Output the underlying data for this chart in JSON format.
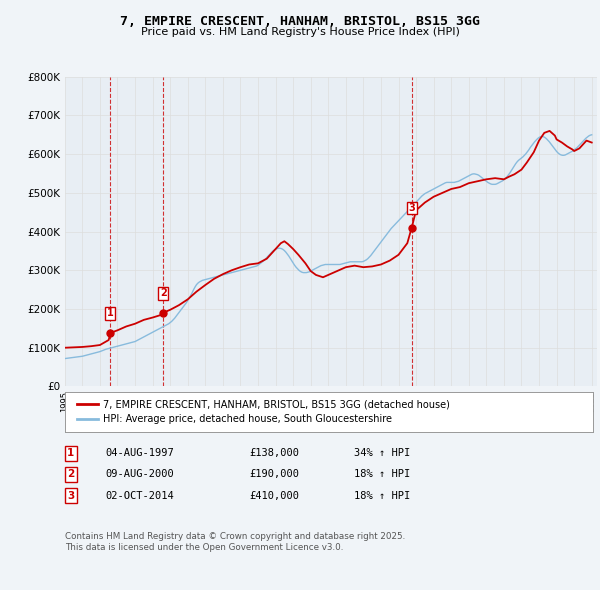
{
  "title": "7, EMPIRE CRESCENT, HANHAM, BRISTOL, BS15 3GG",
  "subtitle": "Price paid vs. HM Land Registry's House Price Index (HPI)",
  "ylim": [
    0,
    800000
  ],
  "yticks": [
    0,
    100000,
    200000,
    300000,
    400000,
    500000,
    600000,
    700000,
    800000
  ],
  "ytick_labels": [
    "£0",
    "£100K",
    "£200K",
    "£300K",
    "£400K",
    "£500K",
    "£600K",
    "£700K",
    "£800K"
  ],
  "sale_dates": [
    1997.59,
    2000.6,
    2014.75
  ],
  "sale_prices": [
    138000,
    190000,
    410000
  ],
  "sale_labels": [
    "1",
    "2",
    "3"
  ],
  "red_line_color": "#cc0000",
  "blue_line_color": "#88bbdd",
  "vline_color": "#cc0000",
  "grid_color": "#dddddd",
  "background_color": "#f0f4f8",
  "plot_bg_color": "#e8eef4",
  "legend_label_red": "7, EMPIRE CRESCENT, HANHAM, BRISTOL, BS15 3GG (detached house)",
  "legend_label_blue": "HPI: Average price, detached house, South Gloucestershire",
  "table_entries": [
    {
      "num": "1",
      "date": "04-AUG-1997",
      "price": "£138,000",
      "hpi": "34% ↑ HPI"
    },
    {
      "num": "2",
      "date": "09-AUG-2000",
      "price": "£190,000",
      "hpi": "18% ↑ HPI"
    },
    {
      "num": "3",
      "date": "02-OCT-2014",
      "price": "£410,000",
      "hpi": "18% ↑ HPI"
    }
  ],
  "footer": "Contains HM Land Registry data © Crown copyright and database right 2025.\nThis data is licensed under the Open Government Licence v3.0.",
  "hpi_years": [
    1995.0,
    1995.083,
    1995.167,
    1995.25,
    1995.333,
    1995.417,
    1995.5,
    1995.583,
    1995.667,
    1995.75,
    1995.833,
    1995.917,
    1996.0,
    1996.083,
    1996.167,
    1996.25,
    1996.333,
    1996.417,
    1996.5,
    1996.583,
    1996.667,
    1996.75,
    1996.833,
    1996.917,
    1997.0,
    1997.083,
    1997.167,
    1997.25,
    1997.333,
    1997.417,
    1997.5,
    1997.583,
    1997.667,
    1997.75,
    1997.833,
    1997.917,
    1998.0,
    1998.083,
    1998.167,
    1998.25,
    1998.333,
    1998.417,
    1998.5,
    1998.583,
    1998.667,
    1998.75,
    1998.833,
    1998.917,
    1999.0,
    1999.083,
    1999.167,
    1999.25,
    1999.333,
    1999.417,
    1999.5,
    1999.583,
    1999.667,
    1999.75,
    1999.833,
    1999.917,
    2000.0,
    2000.083,
    2000.167,
    2000.25,
    2000.333,
    2000.417,
    2000.5,
    2000.583,
    2000.667,
    2000.75,
    2000.833,
    2000.917,
    2001.0,
    2001.083,
    2001.167,
    2001.25,
    2001.333,
    2001.417,
    2001.5,
    2001.583,
    2001.667,
    2001.75,
    2001.833,
    2001.917,
    2002.0,
    2002.083,
    2002.167,
    2002.25,
    2002.333,
    2002.417,
    2002.5,
    2002.583,
    2002.667,
    2002.75,
    2002.833,
    2002.917,
    2003.0,
    2003.083,
    2003.167,
    2003.25,
    2003.333,
    2003.417,
    2003.5,
    2003.583,
    2003.667,
    2003.75,
    2003.833,
    2003.917,
    2004.0,
    2004.083,
    2004.167,
    2004.25,
    2004.333,
    2004.417,
    2004.5,
    2004.583,
    2004.667,
    2004.75,
    2004.833,
    2004.917,
    2005.0,
    2005.083,
    2005.167,
    2005.25,
    2005.333,
    2005.417,
    2005.5,
    2005.583,
    2005.667,
    2005.75,
    2005.833,
    2005.917,
    2006.0,
    2006.083,
    2006.167,
    2006.25,
    2006.333,
    2006.417,
    2006.5,
    2006.583,
    2006.667,
    2006.75,
    2006.833,
    2006.917,
    2007.0,
    2007.083,
    2007.167,
    2007.25,
    2007.333,
    2007.417,
    2007.5,
    2007.583,
    2007.667,
    2007.75,
    2007.833,
    2007.917,
    2008.0,
    2008.083,
    2008.167,
    2008.25,
    2008.333,
    2008.417,
    2008.5,
    2008.583,
    2008.667,
    2008.75,
    2008.833,
    2008.917,
    2009.0,
    2009.083,
    2009.167,
    2009.25,
    2009.333,
    2009.417,
    2009.5,
    2009.583,
    2009.667,
    2009.75,
    2009.833,
    2009.917,
    2010.0,
    2010.083,
    2010.167,
    2010.25,
    2010.333,
    2010.417,
    2010.5,
    2010.583,
    2010.667,
    2010.75,
    2010.833,
    2010.917,
    2011.0,
    2011.083,
    2011.167,
    2011.25,
    2011.333,
    2011.417,
    2011.5,
    2011.583,
    2011.667,
    2011.75,
    2011.833,
    2011.917,
    2012.0,
    2012.083,
    2012.167,
    2012.25,
    2012.333,
    2012.417,
    2012.5,
    2012.583,
    2012.667,
    2012.75,
    2012.833,
    2012.917,
    2013.0,
    2013.083,
    2013.167,
    2013.25,
    2013.333,
    2013.417,
    2013.5,
    2013.583,
    2013.667,
    2013.75,
    2013.833,
    2013.917,
    2014.0,
    2014.083,
    2014.167,
    2014.25,
    2014.333,
    2014.417,
    2014.5,
    2014.583,
    2014.667,
    2014.75,
    2014.833,
    2014.917,
    2015.0,
    2015.083,
    2015.167,
    2015.25,
    2015.333,
    2015.417,
    2015.5,
    2015.583,
    2015.667,
    2015.75,
    2015.833,
    2015.917,
    2016.0,
    2016.083,
    2016.167,
    2016.25,
    2016.333,
    2016.417,
    2016.5,
    2016.583,
    2016.667,
    2016.75,
    2016.833,
    2016.917,
    2017.0,
    2017.083,
    2017.167,
    2017.25,
    2017.333,
    2017.417,
    2017.5,
    2017.583,
    2017.667,
    2017.75,
    2017.833,
    2017.917,
    2018.0,
    2018.083,
    2018.167,
    2018.25,
    2018.333,
    2018.417,
    2018.5,
    2018.583,
    2018.667,
    2018.75,
    2018.833,
    2018.917,
    2019.0,
    2019.083,
    2019.167,
    2019.25,
    2019.333,
    2019.417,
    2019.5,
    2019.583,
    2019.667,
    2019.75,
    2019.833,
    2019.917,
    2020.0,
    2020.083,
    2020.167,
    2020.25,
    2020.333,
    2020.417,
    2020.5,
    2020.583,
    2020.667,
    2020.75,
    2020.833,
    2020.917,
    2021.0,
    2021.083,
    2021.167,
    2021.25,
    2021.333,
    2021.417,
    2021.5,
    2021.583,
    2021.667,
    2021.75,
    2021.833,
    2021.917,
    2022.0,
    2022.083,
    2022.167,
    2022.25,
    2022.333,
    2022.417,
    2022.5,
    2022.583,
    2022.667,
    2022.75,
    2022.833,
    2022.917,
    2023.0,
    2023.083,
    2023.167,
    2023.25,
    2023.333,
    2023.417,
    2023.5,
    2023.583,
    2023.667,
    2023.75,
    2023.833,
    2023.917,
    2024.0,
    2024.083,
    2024.167,
    2024.25,
    2024.333,
    2024.417,
    2024.5,
    2024.583,
    2024.667,
    2024.75,
    2024.833,
    2024.917,
    2025.0
  ],
  "hpi_values": [
    72000,
    72500,
    73000,
    73500,
    74000,
    74500,
    75000,
    75500,
    76000,
    76500,
    77000,
    77500,
    78000,
    79000,
    80000,
    81000,
    82000,
    83000,
    84000,
    85000,
    86000,
    87000,
    88000,
    89000,
    90000,
    91500,
    93000,
    94500,
    96000,
    97000,
    98000,
    99000,
    100000,
    101000,
    102000,
    103000,
    104000,
    105000,
    106000,
    107000,
    108000,
    109000,
    110000,
    111000,
    112000,
    113000,
    114000,
    115000,
    116000,
    118000,
    120000,
    122000,
    124000,
    126000,
    128000,
    130000,
    132000,
    134000,
    136000,
    138000,
    140000,
    142000,
    144000,
    146000,
    148000,
    150000,
    152000,
    154000,
    156000,
    158000,
    160000,
    162000,
    165000,
    168000,
    172000,
    176000,
    181000,
    186000,
    191000,
    196000,
    201000,
    206000,
    211000,
    216000,
    222000,
    228000,
    235000,
    242000,
    250000,
    257000,
    263000,
    267000,
    270000,
    272000,
    274000,
    275000,
    276000,
    277000,
    278000,
    279000,
    280000,
    281000,
    282000,
    283000,
    284000,
    285000,
    286000,
    287000,
    288000,
    289000,
    290000,
    291000,
    292000,
    293000,
    294000,
    295000,
    296000,
    297000,
    298000,
    299000,
    300000,
    301000,
    302000,
    303000,
    304000,
    305000,
    306000,
    307000,
    308000,
    309000,
    310000,
    311000,
    313000,
    316000,
    319000,
    322000,
    325000,
    329000,
    333000,
    337000,
    341000,
    345000,
    349000,
    352000,
    354000,
    356000,
    357000,
    357000,
    356000,
    354000,
    351000,
    347000,
    342000,
    337000,
    331000,
    325000,
    319000,
    313000,
    308000,
    304000,
    300000,
    297000,
    295000,
    294000,
    294000,
    294000,
    295000,
    296000,
    298000,
    300000,
    302000,
    304000,
    306000,
    308000,
    310000,
    312000,
    313000,
    314000,
    315000,
    315000,
    315000,
    315000,
    315000,
    315000,
    315000,
    315000,
    315000,
    315000,
    315000,
    316000,
    317000,
    318000,
    319000,
    320000,
    321000,
    322000,
    322000,
    322000,
    322000,
    322000,
    322000,
    322000,
    322000,
    322000,
    323000,
    325000,
    327000,
    330000,
    334000,
    338000,
    343000,
    348000,
    353000,
    358000,
    363000,
    368000,
    373000,
    378000,
    383000,
    388000,
    393000,
    398000,
    403000,
    408000,
    412000,
    416000,
    420000,
    424000,
    428000,
    432000,
    436000,
    440000,
    444000,
    448000,
    452000,
    456000,
    460000,
    464000,
    468000,
    472000,
    476000,
    480000,
    484000,
    488000,
    492000,
    495000,
    498000,
    500000,
    502000,
    504000,
    506000,
    508000,
    510000,
    512000,
    514000,
    516000,
    518000,
    520000,
    522000,
    524000,
    526000,
    527000,
    527000,
    527000,
    527000,
    527000,
    527000,
    528000,
    529000,
    530000,
    532000,
    534000,
    536000,
    538000,
    540000,
    542000,
    544000,
    546000,
    548000,
    549000,
    549000,
    548000,
    547000,
    545000,
    542000,
    539000,
    536000,
    533000,
    530000,
    527000,
    525000,
    523000,
    522000,
    522000,
    522000,
    523000,
    525000,
    527000,
    529000,
    531000,
    534000,
    537000,
    541000,
    546000,
    551000,
    557000,
    563000,
    569000,
    575000,
    580000,
    584000,
    587000,
    590000,
    593000,
    597000,
    601000,
    606000,
    611000,
    617000,
    622000,
    627000,
    632000,
    636000,
    640000,
    643000,
    645000,
    646000,
    645000,
    643000,
    640000,
    636000,
    632000,
    627000,
    622000,
    617000,
    612000,
    607000,
    603000,
    600000,
    598000,
    597000,
    597000,
    598000,
    600000,
    602000,
    604000,
    606000,
    608000,
    611000,
    614000,
    617000,
    621000,
    625000,
    629000,
    633000,
    637000,
    641000,
    644000,
    647000,
    649000,
    650000
  ],
  "red_line_years": [
    1995.0,
    1995.5,
    1996.0,
    1996.5,
    1997.0,
    1997.5,
    1997.59,
    1997.59,
    1997.7,
    1998.0,
    1998.5,
    1999.0,
    1999.5,
    2000.0,
    2000.5,
    2000.59,
    2000.59,
    2001.0,
    2001.5,
    2002.0,
    2002.5,
    2003.0,
    2003.5,
    2004.0,
    2004.5,
    2005.0,
    2005.5,
    2006.0,
    2006.5,
    2007.0,
    2007.3,
    2007.5,
    2007.7,
    2008.0,
    2008.3,
    2008.7,
    2009.0,
    2009.3,
    2009.7,
    2010.0,
    2010.5,
    2011.0,
    2011.5,
    2012.0,
    2012.5,
    2013.0,
    2013.5,
    2014.0,
    2014.5,
    2014.75,
    2014.75,
    2015.0,
    2015.5,
    2016.0,
    2016.5,
    2017.0,
    2017.5,
    2018.0,
    2018.5,
    2019.0,
    2019.5,
    2020.0,
    2020.3,
    2020.6,
    2021.0,
    2021.3,
    2021.7,
    2022.0,
    2022.3,
    2022.6,
    2022.9,
    2023.0,
    2023.3,
    2023.6,
    2023.9,
    2024.0,
    2024.3,
    2024.5,
    2024.7,
    2025.0
  ],
  "red_line_values": [
    100000,
    101000,
    102000,
    104000,
    107000,
    120000,
    138000,
    138000,
    140000,
    145000,
    155000,
    162000,
    172000,
    178000,
    185000,
    190000,
    190000,
    198000,
    210000,
    225000,
    245000,
    262000,
    278000,
    290000,
    300000,
    308000,
    315000,
    318000,
    330000,
    355000,
    370000,
    375000,
    368000,
    355000,
    340000,
    318000,
    298000,
    288000,
    282000,
    288000,
    298000,
    308000,
    312000,
    308000,
    310000,
    315000,
    325000,
    340000,
    370000,
    410000,
    410000,
    455000,
    475000,
    490000,
    500000,
    510000,
    515000,
    525000,
    530000,
    535000,
    538000,
    535000,
    542000,
    548000,
    560000,
    578000,
    605000,
    635000,
    655000,
    660000,
    648000,
    638000,
    630000,
    620000,
    612000,
    608000,
    615000,
    625000,
    635000,
    630000
  ]
}
